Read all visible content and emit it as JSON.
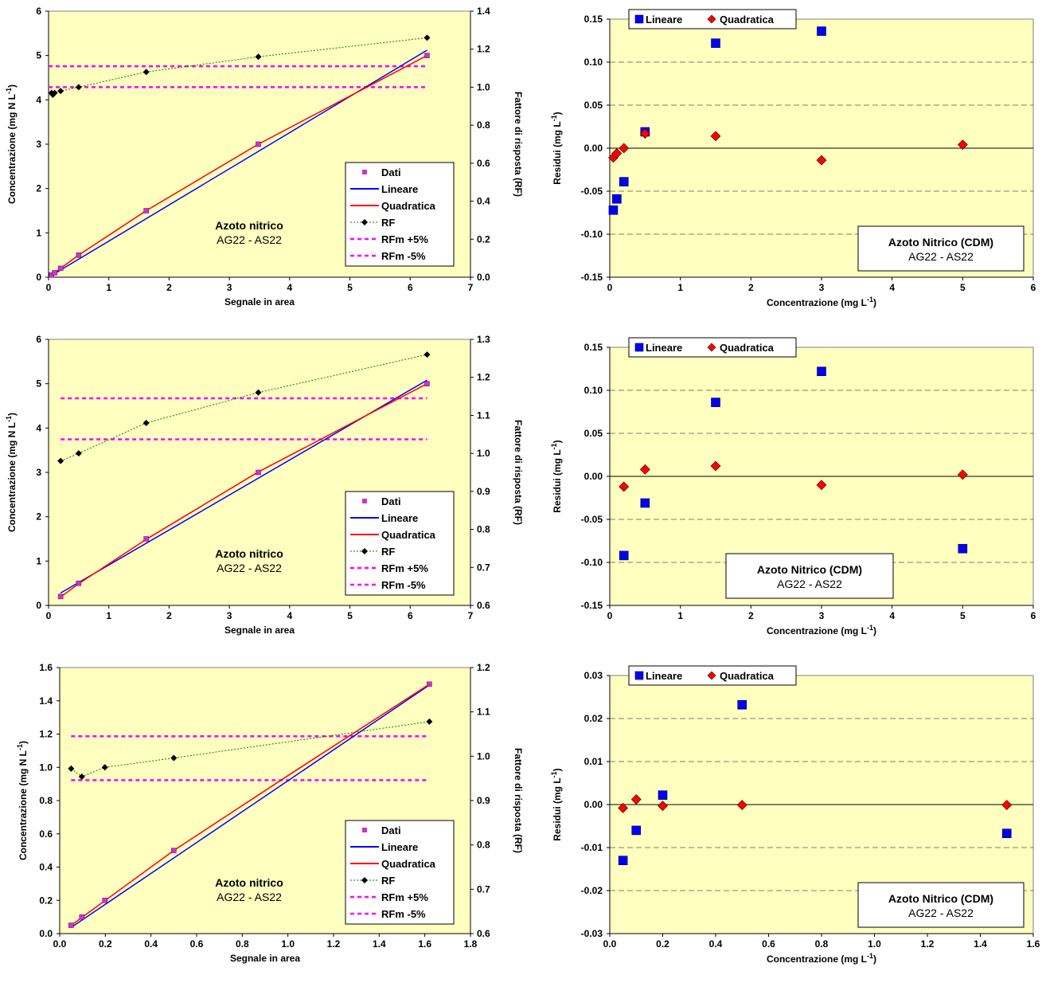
{
  "figure": {
    "calibration_legend": [
      "Dati",
      "Lineare",
      "Quadratica",
      "RF",
      "RFm +5%",
      "RFm -5%"
    ],
    "residual_legend": [
      "Lineare",
      "Quadratica"
    ],
    "colors": {
      "plot_bg": "#FFFFC0",
      "dati": "#CC33CC",
      "lineare": "#0000FF",
      "quadratica": "#FF0000",
      "rf": "#000000",
      "rf_line": "#008000",
      "rfm": "#FF00FF"
    }
  },
  "chart_data": [
    {
      "type": "scatter",
      "xlabel": "Segnale in area",
      "ylabel": "Concentrazione (mg N L-1)",
      "y2label": "Fattore di risposta (RF)",
      "xlim": [
        0,
        7
      ],
      "ylim": [
        0,
        6
      ],
      "y2lim": [
        0,
        1.4
      ],
      "xticks": [
        0,
        1,
        2,
        3,
        4,
        5,
        6,
        7
      ],
      "yticks": [
        0,
        1,
        2,
        3,
        4,
        5,
        6
      ],
      "y2ticks": [
        0.0,
        0.2,
        0.4,
        0.6,
        0.8,
        1.0,
        1.2,
        1.4
      ],
      "annotation": [
        "Azoto nitrico",
        "AG22 - AS22"
      ],
      "series": [
        {
          "name": "Dati",
          "x": [
            0.05,
            0.1,
            0.2,
            0.5,
            1.62,
            3.48,
            6.28
          ],
          "y": [
            0.05,
            0.1,
            0.2,
            0.5,
            1.5,
            3.0,
            5.0
          ]
        },
        {
          "name": "Lineare",
          "x": [
            0.0,
            6.28
          ],
          "y": [
            0.0,
            5.12
          ]
        },
        {
          "name": "Quadratica",
          "x": [
            0.0,
            0.5,
            1.62,
            3.48,
            6.28
          ],
          "y": [
            0.0,
            0.5,
            1.5,
            3.0,
            5.0
          ]
        },
        {
          "name": "RF",
          "x": [
            0.05,
            0.07,
            0.1,
            0.2,
            0.5,
            1.62,
            3.48,
            6.28
          ],
          "y": [
            0.97,
            0.96,
            0.97,
            0.98,
            1.0,
            1.08,
            1.16,
            1.26
          ]
        },
        {
          "name": "RFm +5%",
          "x": [
            0.0,
            6.28
          ],
          "y": [
            1.11,
            1.11
          ]
        },
        {
          "name": "RFm -5%",
          "x": [
            0.0,
            6.28
          ],
          "y": [
            1.0,
            1.0
          ]
        }
      ]
    },
    {
      "type": "scatter",
      "xlabel": "Concentrazione (mg L-1)",
      "ylabel": "Residui (mg L-1)",
      "xlim": [
        0,
        6
      ],
      "ylim": [
        -0.15,
        0.15
      ],
      "xticks": [
        0,
        1,
        2,
        3,
        4,
        5,
        6
      ],
      "yticks": [
        -0.15,
        -0.1,
        -0.05,
        0.0,
        0.05,
        0.1,
        0.15
      ],
      "annotation": [
        "Azoto Nitrico (CDM)",
        "AG22 - AS22"
      ],
      "series": [
        {
          "name": "Lineare",
          "x": [
            0.05,
            0.1,
            0.2,
            0.5,
            1.5,
            3.0
          ],
          "y": [
            -0.072,
            -0.059,
            -0.039,
            0.019,
            0.122,
            0.136
          ]
        },
        {
          "name": "Quadratica",
          "x": [
            0.05,
            0.1,
            0.2,
            0.5,
            1.5,
            3.0,
            5.0
          ],
          "y": [
            -0.011,
            -0.006,
            0.0,
            0.017,
            0.014,
            -0.014,
            0.004
          ]
        }
      ]
    },
    {
      "type": "scatter",
      "xlabel": "Segnale in area",
      "ylabel": "Concentrazione (mg N L-1)",
      "y2label": "Fattore di risposta (RF)",
      "xlim": [
        0,
        7
      ],
      "ylim": [
        0,
        6
      ],
      "y2lim": [
        0.6,
        1.3
      ],
      "xticks": [
        0,
        1,
        2,
        3,
        4,
        5,
        6,
        7
      ],
      "yticks": [
        0,
        1,
        2,
        3,
        4,
        5,
        6
      ],
      "y2ticks": [
        0.6,
        0.7,
        0.8,
        0.9,
        1.0,
        1.1,
        1.2,
        1.3
      ],
      "annotation": [
        "Azoto nitrico",
        "AG22 - AS22"
      ],
      "series": [
        {
          "name": "Dati",
          "x": [
            0.2,
            0.5,
            1.62,
            3.48,
            6.28
          ],
          "y": [
            0.2,
            0.5,
            1.5,
            3.0,
            5.0
          ]
        },
        {
          "name": "Lineare",
          "x": [
            0.2,
            6.28
          ],
          "y": [
            0.28,
            5.08
          ]
        },
        {
          "name": "Quadratica",
          "x": [
            0.2,
            0.5,
            1.62,
            3.48,
            6.28
          ],
          "y": [
            0.19,
            0.49,
            1.49,
            3.01,
            5.0
          ]
        },
        {
          "name": "RF",
          "x": [
            0.2,
            0.5,
            1.62,
            3.48,
            6.28
          ],
          "y": [
            0.98,
            1.0,
            1.08,
            1.16,
            1.26
          ]
        },
        {
          "name": "RFm +5%",
          "x": [
            0.2,
            6.28
          ],
          "y": [
            1.145,
            1.145
          ]
        },
        {
          "name": "RFm -5%",
          "x": [
            0.2,
            6.28
          ],
          "y": [
            1.037,
            1.037
          ]
        }
      ]
    },
    {
      "type": "scatter",
      "xlabel": "Concentrazione (mg L-1)",
      "ylabel": "Residui (mg L-1)",
      "xlim": [
        0,
        6
      ],
      "ylim": [
        -0.15,
        0.15
      ],
      "xticks": [
        0,
        1,
        2,
        3,
        4,
        5,
        6
      ],
      "yticks": [
        -0.15,
        -0.1,
        -0.05,
        0.0,
        0.05,
        0.1,
        0.15
      ],
      "annotation": [
        "Azoto Nitrico (CDM)",
        "AG22 - AS22"
      ],
      "series": [
        {
          "name": "Lineare",
          "x": [
            0.2,
            0.5,
            1.5,
            3.0,
            5.0
          ],
          "y": [
            -0.092,
            -0.031,
            0.086,
            0.122,
            -0.084
          ]
        },
        {
          "name": "Quadratica",
          "x": [
            0.2,
            0.5,
            1.5,
            3.0,
            5.0
          ],
          "y": [
            -0.012,
            0.008,
            0.012,
            -0.01,
            0.002
          ]
        }
      ]
    },
    {
      "type": "scatter",
      "xlabel": "Segnale in area",
      "ylabel": "Concentrazione (mg N L-1)",
      "y2label": "Fattore di risposta (RF)",
      "xlim": [
        0,
        1.8
      ],
      "ylim": [
        0,
        1.6
      ],
      "y2lim": [
        0.6,
        1.2
      ],
      "xticks": [
        0.0,
        0.2,
        0.4,
        0.6,
        0.8,
        1.0,
        1.2,
        1.4,
        1.6,
        1.8
      ],
      "yticks": [
        0.0,
        0.2,
        0.4,
        0.6,
        0.8,
        1.0,
        1.2,
        1.4,
        1.6
      ],
      "y2ticks": [
        0.6,
        0.7,
        0.8,
        0.9,
        1.0,
        1.1,
        1.2
      ],
      "annotation": [
        "Azoto nitrico",
        "AG22 - AS22"
      ],
      "series": [
        {
          "name": "Dati",
          "x": [
            0.05,
            0.097,
            0.198,
            0.5,
            1.62
          ],
          "y": [
            0.05,
            0.1,
            0.2,
            0.5,
            1.5
          ]
        },
        {
          "name": "Lineare",
          "x": [
            0.05,
            1.62
          ],
          "y": [
            0.037,
            1.495
          ]
        },
        {
          "name": "Quadratica",
          "x": [
            0.05,
            0.5,
            1.0,
            1.62
          ],
          "y": [
            0.05,
            0.5,
            0.95,
            1.5
          ]
        },
        {
          "name": "RF",
          "x": [
            0.05,
            0.097,
            0.198,
            0.5,
            1.62
          ],
          "y": [
            0.972,
            0.954,
            0.975,
            0.996,
            1.078
          ]
        },
        {
          "name": "RFm +5%",
          "x": [
            0.05,
            1.62
          ],
          "y": [
            1.045,
            1.045
          ]
        },
        {
          "name": "RFm -5%",
          "x": [
            0.05,
            1.62
          ],
          "y": [
            0.946,
            0.946
          ]
        }
      ]
    },
    {
      "type": "scatter",
      "xlabel": "Concentrazione (mg L-1)",
      "ylabel": "Residui (mg L-1)",
      "xlim": [
        0,
        1.6
      ],
      "ylim": [
        -0.03,
        0.03
      ],
      "xticks": [
        0.0,
        0.2,
        0.4,
        0.6,
        0.8,
        1.0,
        1.2,
        1.4,
        1.6
      ],
      "yticks": [
        -0.03,
        -0.02,
        -0.01,
        0.0,
        0.01,
        0.02,
        0.03
      ],
      "annotation": [
        "Azoto Nitrico (CDM)",
        "AG22 - AS22"
      ],
      "series": [
        {
          "name": "Lineare",
          "x": [
            0.05,
            0.1,
            0.2,
            0.5,
            1.5
          ],
          "y": [
            -0.013,
            -0.006,
            0.0022,
            0.0232,
            -0.0067
          ]
        },
        {
          "name": "Quadratica",
          "x": [
            0.05,
            0.1,
            0.2,
            0.5,
            1.5
          ],
          "y": [
            -0.0008,
            0.0012,
            -0.0003,
            -0.0001,
            -0.0001
          ]
        }
      ]
    }
  ]
}
